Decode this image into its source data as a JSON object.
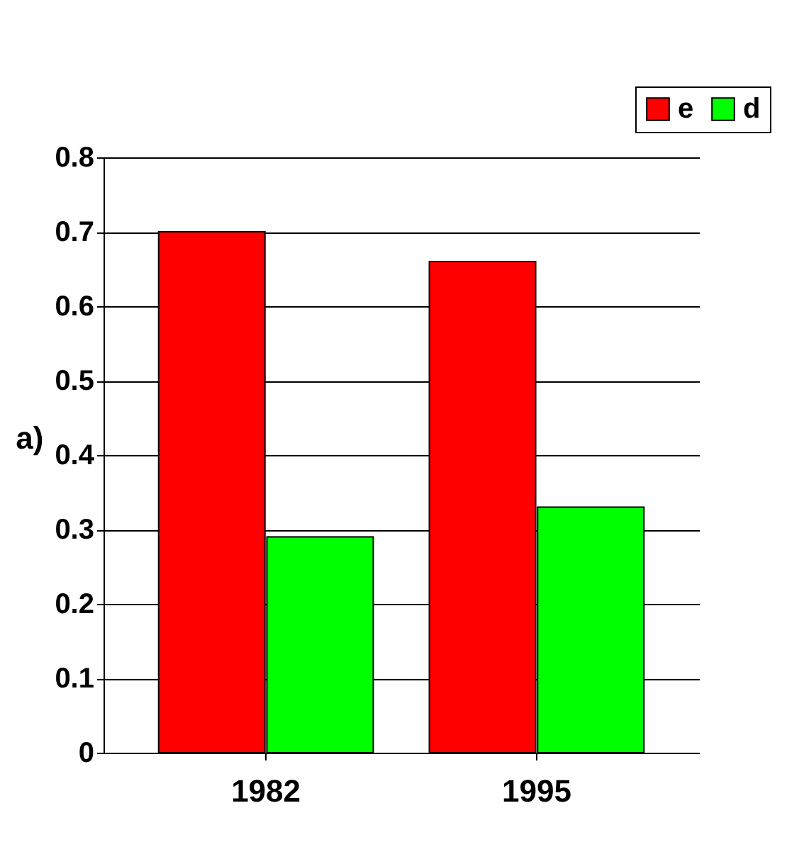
{
  "chart_data": {
    "type": "bar",
    "ylabel": "a)",
    "categories": [
      "1982",
      "1995"
    ],
    "series": [
      {
        "name": "e",
        "color": "#ff0000",
        "values": [
          0.7,
          0.66
        ]
      },
      {
        "name": "d",
        "color": "#00ff00",
        "values": [
          0.29,
          0.33
        ]
      }
    ],
    "ylim": [
      0,
      0.8
    ],
    "yticks": [
      0,
      0.1,
      0.2,
      0.3,
      0.4,
      0.5,
      0.6,
      0.7,
      0.8
    ],
    "grid": "y",
    "legend": "top right"
  }
}
